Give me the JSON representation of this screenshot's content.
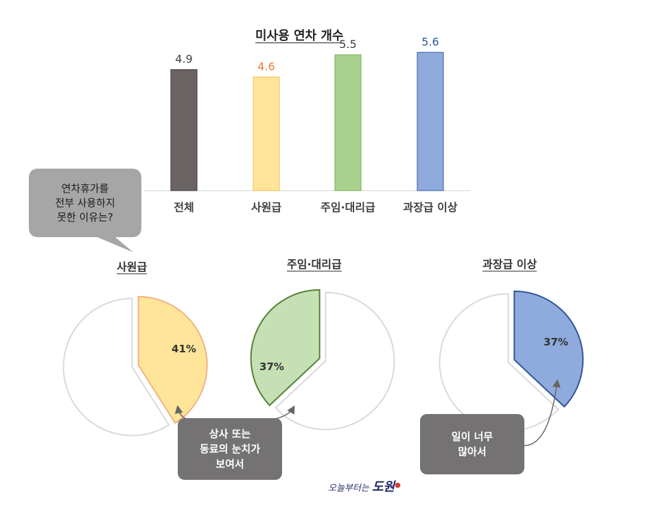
{
  "chart_data": [
    {
      "type": "bar",
      "title": "미사용 연차 개수",
      "categories": [
        "전체",
        "사원급",
        "주임·대리급",
        "과장급 이상"
      ],
      "values": [
        4.9,
        4.6,
        5.5,
        5.6
      ],
      "data_labels": [
        "4.9",
        "4.6",
        "5.5",
        "5.6"
      ],
      "colors": [
        "#6b6464",
        "#ffe599",
        "#a9d18e",
        "#8faadc"
      ],
      "border_colors": [
        "#4a4444",
        "#f2c65a",
        "#7eb560",
        "#4a6fb0"
      ],
      "label_colors": [
        "#404040",
        "#ed7d31",
        "#404040",
        "#2f5597"
      ],
      "ylim": [
        0,
        6
      ],
      "grid": false,
      "legend": "none"
    },
    {
      "type": "pie",
      "title": "사원급",
      "highlight_value": 41,
      "highlight_label": "41%",
      "fill": "#ffe599",
      "stroke": "#f4b183"
    },
    {
      "type": "pie",
      "title": "주임·대리급",
      "highlight_value": 37,
      "highlight_label": "37%",
      "fill": "#c5e0b4",
      "stroke": "#538135"
    },
    {
      "type": "pie",
      "title": "과장급 이상",
      "highlight_value": 37,
      "highlight_label": "37%",
      "fill": "#8faadc",
      "stroke": "#2f5597"
    }
  ],
  "bubble": {
    "lines": [
      "연차휴가를",
      "전부 사용하지",
      "못한 이유는?"
    ]
  },
  "reasons": {
    "reason1": [
      "상사 또는",
      "동료의 눈치가",
      "보여서"
    ],
    "reason2": [
      "일이 너무",
      "많아서"
    ]
  },
  "logo": {
    "small": "오늘부터는",
    "big": "도원"
  }
}
